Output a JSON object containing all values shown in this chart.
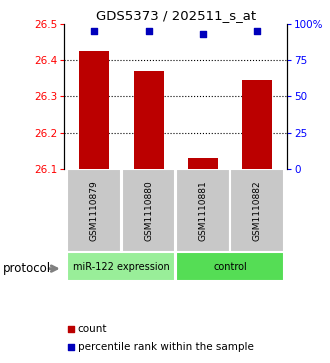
{
  "title": "GDS5373 / 202511_s_at",
  "samples": [
    "GSM1110879",
    "GSM1110880",
    "GSM1110881",
    "GSM1110882"
  ],
  "bar_values": [
    26.425,
    26.37,
    26.13,
    26.345
  ],
  "percentile_values": [
    95,
    95,
    93,
    95
  ],
  "bar_color": "#bb0000",
  "percentile_color": "#0000bb",
  "ylim_left": [
    26.1,
    26.5
  ],
  "ylim_right": [
    0,
    100
  ],
  "yticks_left": [
    26.1,
    26.2,
    26.3,
    26.4,
    26.5
  ],
  "yticks_right": [
    0,
    25,
    50,
    75,
    100
  ],
  "ytick_labels_right": [
    "0",
    "25",
    "50",
    "75",
    "100%"
  ],
  "grid_values": [
    26.2,
    26.3,
    26.4
  ],
  "groups": [
    {
      "label": "miR-122 expression",
      "indices": [
        0,
        1
      ],
      "color": "#99ee99"
    },
    {
      "label": "control",
      "indices": [
        2,
        3
      ],
      "color": "#55dd55"
    }
  ],
  "protocol_label": "protocol",
  "legend_items": [
    {
      "label": "count",
      "color": "#bb0000",
      "marker": "s"
    },
    {
      "label": "percentile rank within the sample",
      "color": "#0000bb",
      "marker": "s"
    }
  ],
  "bar_width": 0.55,
  "background_color": "#ffffff",
  "sample_bg_color": "#c8c8c8",
  "sample_border_color": "#ffffff"
}
